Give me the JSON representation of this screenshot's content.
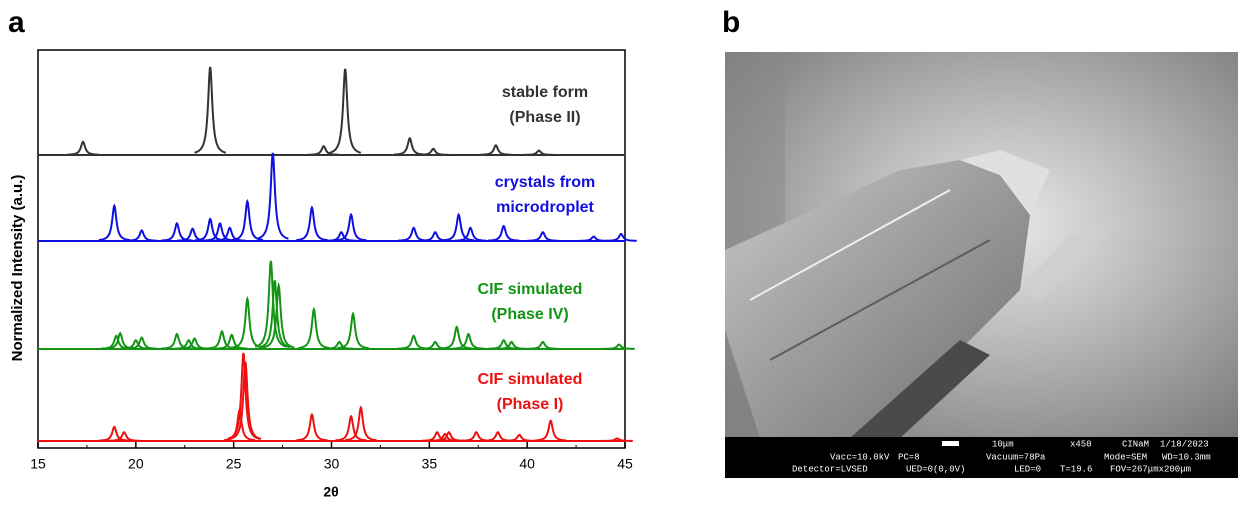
{
  "panel_labels": [
    "a",
    "b"
  ],
  "chart_data": {
    "type": "xrd-stack",
    "xlabel": "2θ",
    "ylabel": "Normalized Intensity (a.u.)",
    "xlim": [
      15,
      45
    ],
    "xticks": [
      15,
      20,
      25,
      30,
      35,
      40,
      45
    ],
    "series": [
      {
        "name_lines": [
          "stable form",
          "(Phase II)"
        ],
        "color": "#333333",
        "x": [
          17.3,
          23.8,
          29.6,
          30.7,
          34.0,
          35.2,
          38.4,
          40.6
        ],
        "values": [
          15,
          100,
          10,
          98,
          19,
          7,
          11,
          5
        ]
      },
      {
        "name_lines": [
          "crystals from",
          "microdroplet"
        ],
        "color": "#1010e0",
        "x": [
          18.9,
          20.3,
          22.1,
          22.9,
          23.8,
          24.3,
          24.8,
          25.7,
          27.0,
          29.0,
          30.5,
          31.0,
          34.2,
          35.3,
          36.5,
          37.1,
          38.8,
          40.8,
          43.4,
          44.8
        ],
        "values": [
          40,
          12,
          20,
          14,
          25,
          20,
          15,
          45,
          100,
          38,
          10,
          30,
          15,
          10,
          30,
          15,
          17,
          10,
          5,
          8
        ]
      },
      {
        "name_lines": [
          "CIF simulated",
          "(Phase IV)"
        ],
        "color": "#149414",
        "x": [
          19.0,
          19.2,
          20.0,
          20.3,
          22.1,
          22.7,
          23.0,
          24.4,
          24.9,
          25.7,
          26.9,
          27.1,
          27.3,
          29.1,
          30.4,
          31.1,
          34.2,
          35.3,
          36.4,
          37.0,
          38.8,
          39.2,
          40.8,
          44.7
        ],
        "values": [
          15,
          18,
          10,
          13,
          17,
          10,
          12,
          20,
          16,
          57,
          100,
          78,
          72,
          45,
          8,
          40,
          15,
          8,
          25,
          17,
          10,
          8,
          8,
          5
        ]
      },
      {
        "name_lines": [
          "CIF simulated",
          "(Phase I)"
        ],
        "color": "#ee1010",
        "x": [
          18.9,
          19.4,
          25.3,
          25.5,
          25.6,
          29.0,
          31.0,
          31.5,
          35.4,
          35.8,
          36.0,
          37.4,
          38.5,
          39.6,
          41.2,
          44.6
        ],
        "values": [
          16,
          10,
          35,
          100,
          90,
          30,
          28,
          38,
          10,
          8,
          10,
          10,
          10,
          7,
          23,
          3
        ]
      }
    ]
  },
  "sem": {
    "info_rows": [
      [
        "10μm",
        "x450",
        "CINaM",
        "1/18/2023"
      ],
      [
        "Vacc=10.0kV",
        "PC=8",
        "Vacuum=78Pa",
        "Mode=SEM",
        "WD=10.3mm"
      ],
      [
        "Detector=LVSED",
        "UED=0(0,0V)",
        "LED=0",
        "T=19.6",
        "FOV=267μmx200μm"
      ]
    ]
  }
}
